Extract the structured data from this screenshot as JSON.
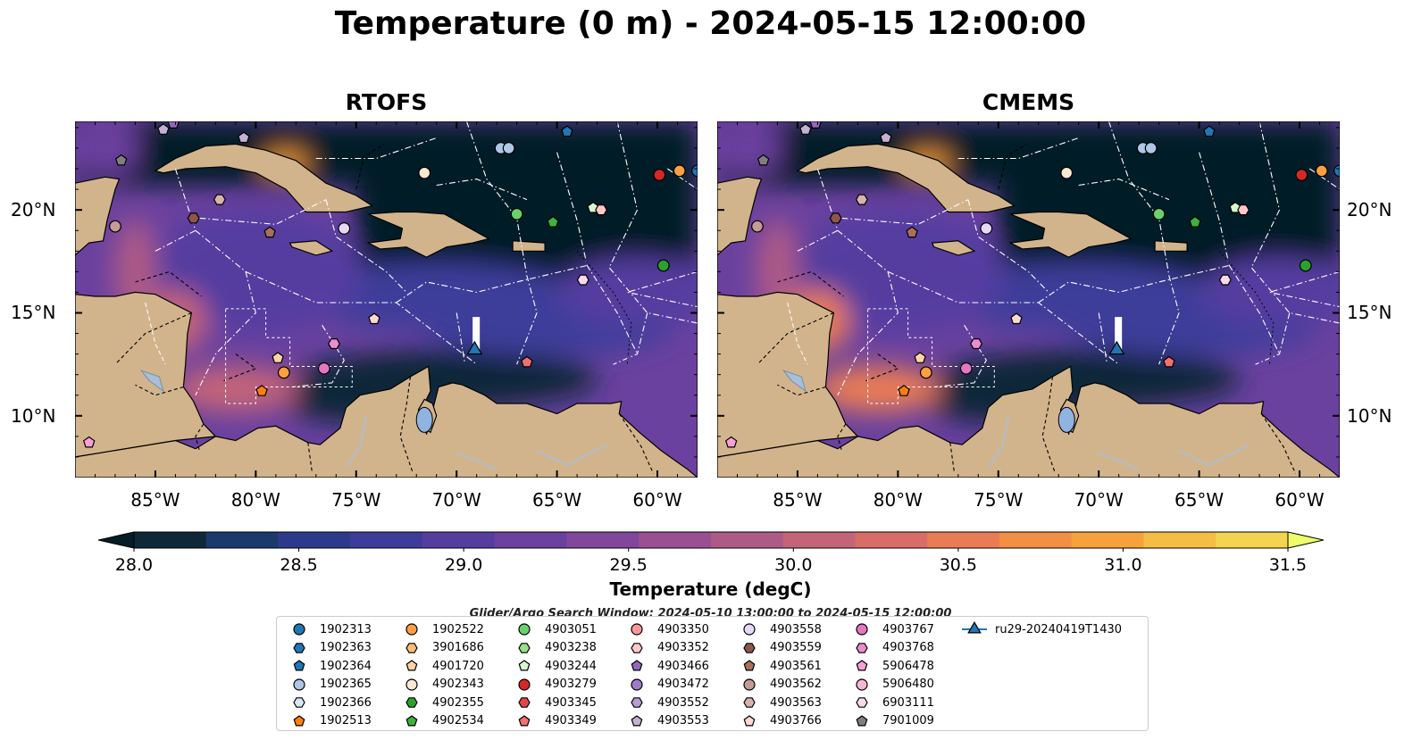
{
  "title": "Temperature (0 m) - 2024-05-15 12:00:00",
  "panels": [
    {
      "title": "RTOFS",
      "warmth": 1.0
    },
    {
      "title": "CMEMS",
      "warmth": 1.2
    }
  ],
  "axes": {
    "lon_ticks": [
      "85°W",
      "80°W",
      "75°W",
      "70°W",
      "65°W",
      "60°W"
    ],
    "lon_values": [
      -85,
      -80,
      -75,
      -70,
      -65,
      -60
    ],
    "lat_ticks": [
      "20°N",
      "15°N",
      "10°N"
    ],
    "lat_values": [
      20,
      15,
      10
    ],
    "lon_range": [
      -89,
      -58
    ],
    "lat_range": [
      7,
      24.3
    ]
  },
  "colorbar": {
    "label": "Temperature (degC)",
    "range": [
      28.0,
      31.5
    ],
    "step": 0.25,
    "ticks": [
      "28.0",
      "28.5",
      "29.0",
      "29.5",
      "30.0",
      "30.5",
      "31.0",
      "31.5"
    ],
    "colors": [
      "#0e2838",
      "#1a3a6b",
      "#2d3a8c",
      "#3e3c9a",
      "#553da0",
      "#6a419f",
      "#81479a",
      "#985093",
      "#ad5a86",
      "#c36479",
      "#d86d68",
      "#e97c54",
      "#f38f45",
      "#f7a13d",
      "#f5bd45",
      "#f2d44f"
    ],
    "under_color": "#061c27",
    "over_color": "#eefd6a"
  },
  "search_window": "Glider/Argo Search Window: 2024-05-10 13:00:00 to 2024-05-15 12:00:00",
  "legend": [
    {
      "label": "1902313",
      "shape": "circle",
      "color": "#1f77b4"
    },
    {
      "label": "1902363",
      "shape": "hexagon",
      "color": "#1f77b4"
    },
    {
      "label": "1902364",
      "shape": "pentagon",
      "color": "#1f77b4"
    },
    {
      "label": "1902365",
      "shape": "circle",
      "color": "#aec7e8"
    },
    {
      "label": "1902366",
      "shape": "hexagon",
      "color": "#d8e8f8"
    },
    {
      "label": "1902513",
      "shape": "pentagon",
      "color": "#ff7f0e"
    },
    {
      "label": "1902522",
      "shape": "circle",
      "color": "#ff9f40"
    },
    {
      "label": "3901686",
      "shape": "hexagon",
      "color": "#ffbb78"
    },
    {
      "label": "4901720",
      "shape": "pentagon",
      "color": "#ffd3a8"
    },
    {
      "label": "4902343",
      "shape": "circle",
      "color": "#ffe8d0"
    },
    {
      "label": "4902355",
      "shape": "hexagon",
      "color": "#2ca02c"
    },
    {
      "label": "4902534",
      "shape": "pentagon",
      "color": "#3cb33c"
    },
    {
      "label": "4903051",
      "shape": "circle",
      "color": "#69d16c"
    },
    {
      "label": "4903238",
      "shape": "hexagon",
      "color": "#98df8a"
    },
    {
      "label": "4903244",
      "shape": "pentagon",
      "color": "#d8f8d0"
    },
    {
      "label": "4903279",
      "shape": "circle",
      "color": "#d62728"
    },
    {
      "label": "4903345",
      "shape": "hexagon",
      "color": "#e04848"
    },
    {
      "label": "4903349",
      "shape": "pentagon",
      "color": "#f07070"
    },
    {
      "label": "4903350",
      "shape": "circle",
      "color": "#ff9896"
    },
    {
      "label": "4903352",
      "shape": "hexagon",
      "color": "#ffc8c8"
    },
    {
      "label": "4903466",
      "shape": "pentagon",
      "color": "#9467bd"
    },
    {
      "label": "4903472",
      "shape": "circle",
      "color": "#a07cc8"
    },
    {
      "label": "4903552",
      "shape": "hexagon",
      "color": "#b89ad8"
    },
    {
      "label": "4903553",
      "shape": "pentagon",
      "color": "#c5b0d5"
    },
    {
      "label": "4903558",
      "shape": "circle",
      "color": "#e8d8f8"
    },
    {
      "label": "4903559",
      "shape": "hexagon",
      "color": "#8c564b"
    },
    {
      "label": "4903561",
      "shape": "pentagon",
      "color": "#a8705c"
    },
    {
      "label": "4903562",
      "shape": "circle",
      "color": "#c49c94"
    },
    {
      "label": "4903563",
      "shape": "hexagon",
      "color": "#d8b4a8"
    },
    {
      "label": "4903766",
      "shape": "pentagon",
      "color": "#fcd8d0"
    },
    {
      "label": "4903767",
      "shape": "circle",
      "color": "#e377c2"
    },
    {
      "label": "4903768",
      "shape": "hexagon",
      "color": "#ea8cd0"
    },
    {
      "label": "5906478",
      "shape": "pentagon",
      "color": "#f7a0d8"
    },
    {
      "label": "5906480",
      "shape": "circle",
      "color": "#f7b6d2"
    },
    {
      "label": "6903111",
      "shape": "hexagon",
      "color": "#fbd8ea"
    },
    {
      "label": "7901009",
      "shape": "pentagon",
      "color": "#7f7f7f"
    },
    {
      "label": "ru29-20240419T1430",
      "shape": "triangle",
      "color": "#1f77b4"
    }
  ],
  "floats": [
    {
      "lon": -84.1,
      "lat": 24.2,
      "color": "#9467bd",
      "shape": "pentagon"
    },
    {
      "lon": -84.6,
      "lat": 23.9,
      "color": "#c5b0d5",
      "shape": "pentagon"
    },
    {
      "lon": -80.6,
      "lat": 23.5,
      "color": "#c5b0d5",
      "shape": "pentagon"
    },
    {
      "lon": -64.5,
      "lat": 23.8,
      "color": "#1f77b4",
      "shape": "pentagon"
    },
    {
      "lon": -67.8,
      "lat": 23.0,
      "color": "#aec7e8",
      "shape": "circle"
    },
    {
      "lon": -67.4,
      "lat": 23.0,
      "color": "#aec7e8",
      "shape": "circle"
    },
    {
      "lon": -86.7,
      "lat": 22.4,
      "color": "#7f7f7f",
      "shape": "pentagon"
    },
    {
      "lon": -71.6,
      "lat": 21.8,
      "color": "#ffe8d0",
      "shape": "circle"
    },
    {
      "lon": -59.9,
      "lat": 21.7,
      "color": "#d62728",
      "shape": "circle"
    },
    {
      "lon": -58.9,
      "lat": 21.9,
      "color": "#ff9f40",
      "shape": "circle"
    },
    {
      "lon": -58.0,
      "lat": 21.9,
      "color": "#1f77b4",
      "shape": "circle"
    },
    {
      "lon": -81.8,
      "lat": 20.5,
      "color": "#d8b4a8",
      "shape": "hexagon"
    },
    {
      "lon": -67.0,
      "lat": 19.8,
      "color": "#69d16c",
      "shape": "circle"
    },
    {
      "lon": -65.2,
      "lat": 19.4,
      "color": "#3cb33c",
      "shape": "pentagon"
    },
    {
      "lon": -63.2,
      "lat": 20.1,
      "color": "#d8f8d0",
      "shape": "pentagon"
    },
    {
      "lon": -62.8,
      "lat": 20.0,
      "color": "#ffc8c8",
      "shape": "hexagon"
    },
    {
      "lon": -87.0,
      "lat": 19.2,
      "color": "#c49c94",
      "shape": "circle"
    },
    {
      "lon": -83.1,
      "lat": 19.6,
      "color": "#8c564b",
      "shape": "hexagon"
    },
    {
      "lon": -79.3,
      "lat": 18.9,
      "color": "#a8705c",
      "shape": "pentagon"
    },
    {
      "lon": -75.6,
      "lat": 19.1,
      "color": "#e8d8f8",
      "shape": "circle"
    },
    {
      "lon": -59.7,
      "lat": 17.3,
      "color": "#2ca02c",
      "shape": "circle"
    },
    {
      "lon": -63.7,
      "lat": 16.6,
      "color": "#fbd8ea",
      "shape": "hexagon"
    },
    {
      "lon": -74.1,
      "lat": 14.7,
      "color": "#fcd8d0",
      "shape": "pentagon"
    },
    {
      "lon": -76.1,
      "lat": 13.5,
      "color": "#ea8cd0",
      "shape": "hexagon"
    },
    {
      "lon": -78.9,
      "lat": 12.8,
      "color": "#ffd3a8",
      "shape": "pentagon"
    },
    {
      "lon": -78.6,
      "lat": 12.1,
      "color": "#ff9f40",
      "shape": "circle"
    },
    {
      "lon": -76.6,
      "lat": 12.3,
      "color": "#e377c2",
      "shape": "circle"
    },
    {
      "lon": -79.7,
      "lat": 11.2,
      "color": "#ff7f0e",
      "shape": "pentagon"
    },
    {
      "lon": -66.5,
      "lat": 12.6,
      "color": "#f07070",
      "shape": "pentagon"
    },
    {
      "lon": -88.3,
      "lat": 8.7,
      "color": "#f7a0d8",
      "shape": "pentagon"
    }
  ],
  "glider": {
    "lon": -69.1,
    "lat": 13.2,
    "color": "#1f77b4",
    "shape": "triangle"
  }
}
